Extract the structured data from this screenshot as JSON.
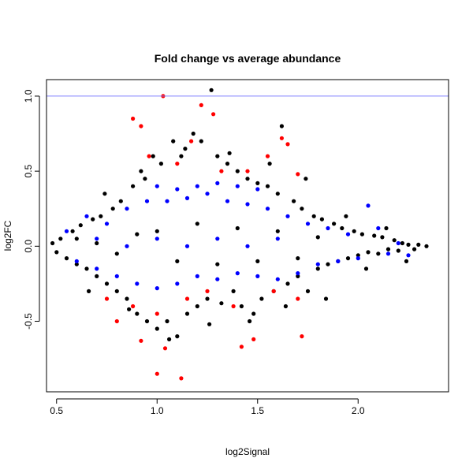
{
  "chart_data": {
    "type": "scatter",
    "title": "Fold change vs average abundance",
    "xlabel": "log2Signal",
    "ylabel": "log2FC",
    "xlim": [
      0.45,
      2.45
    ],
    "ylim": [
      -0.97,
      1.11
    ],
    "xticks": [
      0.5,
      1.0,
      1.5,
      2.0
    ],
    "xtick_labels": [
      "0.5",
      "1.0",
      "1.5",
      "2.0"
    ],
    "yticks": [
      -0.5,
      0.0,
      0.5,
      1.0
    ],
    "ytick_labels": [
      "-0.5",
      "0.0",
      "0.5",
      "1.0"
    ],
    "grid": false,
    "reference_line": {
      "y": 1.0,
      "color": "#8080ff"
    },
    "colors": {
      "all": "#000000",
      "highlight_blue": "#0000ff",
      "highlight_red": "#ff0000"
    },
    "series": [
      {
        "color": "#000000",
        "points": [
          [
            0.48,
            0.02
          ],
          [
            0.5,
            -0.04
          ],
          [
            0.52,
            0.05
          ],
          [
            0.55,
            -0.08
          ],
          [
            0.58,
            0.1
          ],
          [
            0.6,
            -0.12
          ],
          [
            0.62,
            0.14
          ],
          [
            0.65,
            -0.15
          ],
          [
            0.68,
            0.18
          ],
          [
            0.7,
            -0.2
          ],
          [
            0.72,
            0.2
          ],
          [
            0.75,
            -0.25
          ],
          [
            0.78,
            0.25
          ],
          [
            0.8,
            -0.3
          ],
          [
            0.82,
            0.3
          ],
          [
            0.85,
            -0.35
          ],
          [
            0.88,
            0.4
          ],
          [
            0.9,
            -0.45
          ],
          [
            0.92,
            0.5
          ],
          [
            0.95,
            -0.5
          ],
          [
            0.98,
            0.6
          ],
          [
            1.0,
            -0.55
          ],
          [
            1.02,
            0.55
          ],
          [
            1.05,
            -0.5
          ],
          [
            1.08,
            0.7
          ],
          [
            1.1,
            -0.6
          ],
          [
            1.12,
            0.6
          ],
          [
            1.15,
            -0.45
          ],
          [
            1.18,
            0.75
          ],
          [
            1.2,
            -0.4
          ],
          [
            1.22,
            0.7
          ],
          [
            1.25,
            -0.35
          ],
          [
            1.27,
            1.04
          ],
          [
            1.3,
            0.6
          ],
          [
            1.32,
            -0.38
          ],
          [
            1.35,
            0.55
          ],
          [
            1.38,
            -0.3
          ],
          [
            1.4,
            0.5
          ],
          [
            1.42,
            -0.4
          ],
          [
            1.45,
            0.45
          ],
          [
            1.48,
            -0.45
          ],
          [
            1.5,
            0.42
          ],
          [
            1.52,
            -0.35
          ],
          [
            1.55,
            0.4
          ],
          [
            1.58,
            -0.3
          ],
          [
            1.6,
            0.35
          ],
          [
            1.62,
            0.8
          ],
          [
            1.65,
            -0.25
          ],
          [
            1.68,
            0.3
          ],
          [
            1.7,
            -0.2
          ],
          [
            1.72,
            0.25
          ],
          [
            1.75,
            -0.3
          ],
          [
            1.78,
            0.2
          ],
          [
            1.8,
            -0.15
          ],
          [
            1.82,
            0.18
          ],
          [
            1.85,
            -0.12
          ],
          [
            1.88,
            0.15
          ],
          [
            1.9,
            -0.1
          ],
          [
            1.92,
            0.12
          ],
          [
            1.95,
            -0.08
          ],
          [
            1.98,
            0.1
          ],
          [
            2.0,
            -0.06
          ],
          [
            2.02,
            0.08
          ],
          [
            2.05,
            -0.04
          ],
          [
            2.08,
            0.07
          ],
          [
            2.1,
            -0.05
          ],
          [
            2.12,
            0.06
          ],
          [
            2.15,
            -0.02
          ],
          [
            2.18,
            0.04
          ],
          [
            2.2,
            -0.03
          ],
          [
            2.22,
            0.02
          ],
          [
            2.25,
            0.01
          ],
          [
            2.28,
            -0.02
          ],
          [
            2.3,
            0.01
          ],
          [
            2.34,
            0.0
          ],
          [
            0.6,
            0.05
          ],
          [
            0.7,
            0.02
          ],
          [
            0.8,
            -0.05
          ],
          [
            0.9,
            0.08
          ],
          [
            1.0,
            0.1
          ],
          [
            1.1,
            -0.1
          ],
          [
            1.2,
            0.15
          ],
          [
            1.3,
            -0.12
          ],
          [
            1.4,
            0.12
          ],
          [
            1.5,
            -0.1
          ],
          [
            1.6,
            0.1
          ],
          [
            1.7,
            -0.08
          ],
          [
            1.8,
            0.06
          ],
          [
            0.66,
            -0.3
          ],
          [
            0.74,
            0.35
          ],
          [
            0.86,
            -0.42
          ],
          [
            0.94,
            0.45
          ],
          [
            1.06,
            -0.62
          ],
          [
            1.14,
            0.65
          ],
          [
            1.26,
            -0.52
          ],
          [
            1.36,
            0.62
          ],
          [
            1.46,
            -0.5
          ],
          [
            1.56,
            0.55
          ],
          [
            1.64,
            -0.4
          ],
          [
            1.74,
            0.45
          ],
          [
            1.84,
            -0.35
          ],
          [
            1.94,
            0.2
          ],
          [
            2.04,
            -0.15
          ],
          [
            2.14,
            0.12
          ],
          [
            2.24,
            -0.1
          ]
        ]
      },
      {
        "color": "#0000ff",
        "points": [
          [
            0.55,
            0.1
          ],
          [
            0.6,
            -0.1
          ],
          [
            0.65,
            0.2
          ],
          [
            0.7,
            -0.15
          ],
          [
            0.75,
            0.15
          ],
          [
            0.8,
            -0.2
          ],
          [
            0.85,
            0.25
          ],
          [
            0.9,
            -0.25
          ],
          [
            0.95,
            0.3
          ],
          [
            1.0,
            -0.28
          ],
          [
            1.05,
            0.3
          ],
          [
            1.1,
            -0.25
          ],
          [
            1.15,
            0.32
          ],
          [
            1.2,
            -0.2
          ],
          [
            1.25,
            0.35
          ],
          [
            1.3,
            -0.22
          ],
          [
            1.35,
            0.3
          ],
          [
            1.4,
            -0.18
          ],
          [
            1.45,
            0.28
          ],
          [
            1.5,
            -0.2
          ],
          [
            1.55,
            0.25
          ],
          [
            1.6,
            -0.22
          ],
          [
            1.65,
            0.2
          ],
          [
            1.7,
            -0.18
          ],
          [
            1.75,
            0.15
          ],
          [
            1.8,
            -0.12
          ],
          [
            1.85,
            0.12
          ],
          [
            1.9,
            -0.1
          ],
          [
            1.95,
            0.08
          ],
          [
            2.0,
            -0.08
          ],
          [
            2.05,
            0.27
          ],
          [
            2.1,
            0.12
          ],
          [
            2.15,
            -0.05
          ],
          [
            2.2,
            0.02
          ],
          [
            2.25,
            -0.06
          ],
          [
            1.0,
            0.4
          ],
          [
            1.1,
            0.38
          ],
          [
            1.2,
            0.4
          ],
          [
            1.3,
            0.42
          ],
          [
            1.4,
            0.4
          ],
          [
            1.5,
            0.38
          ],
          [
            0.7,
            0.05
          ],
          [
            0.85,
            0.0
          ],
          [
            1.0,
            0.05
          ],
          [
            1.15,
            0.0
          ],
          [
            1.3,
            0.05
          ],
          [
            1.45,
            0.0
          ],
          [
            1.6,
            0.05
          ]
        ]
      },
      {
        "color": "#ff0000",
        "points": [
          [
            0.88,
            0.85
          ],
          [
            0.92,
            0.8
          ],
          [
            0.96,
            0.6
          ],
          [
            1.03,
            1.0
          ],
          [
            1.1,
            0.55
          ],
          [
            1.17,
            0.7
          ],
          [
            1.22,
            0.94
          ],
          [
            1.28,
            0.88
          ],
          [
            1.32,
            0.5
          ],
          [
            1.45,
            0.5
          ],
          [
            1.55,
            0.6
          ],
          [
            1.62,
            0.72
          ],
          [
            1.65,
            0.68
          ],
          [
            1.7,
            0.48
          ],
          [
            0.75,
            -0.35
          ],
          [
            0.8,
            -0.5
          ],
          [
            0.88,
            -0.4
          ],
          [
            0.92,
            -0.63
          ],
          [
            1.0,
            -0.45
          ],
          [
            1.04,
            -0.68
          ],
          [
            1.0,
            -0.85
          ],
          [
            1.12,
            -0.88
          ],
          [
            1.15,
            -0.35
          ],
          [
            1.25,
            -0.3
          ],
          [
            1.38,
            -0.4
          ],
          [
            1.42,
            -0.67
          ],
          [
            1.48,
            -0.62
          ],
          [
            1.58,
            -0.3
          ],
          [
            1.72,
            -0.6
          ],
          [
            1.7,
            -0.35
          ]
        ]
      }
    ]
  }
}
